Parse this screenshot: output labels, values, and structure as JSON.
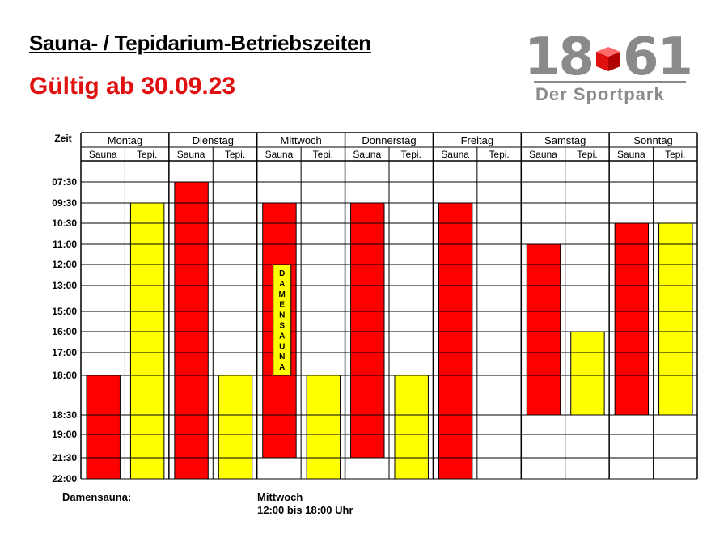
{
  "header": {
    "title": "Sauna- / Tepidarium-Betriebszeiten",
    "subtitle": "Gültig ab 30.09.23"
  },
  "logo": {
    "left_number": "18",
    "right_number": "61",
    "name": "Der Sportpark",
    "cube_color": "#e01010"
  },
  "colors": {
    "sauna": "#ff0000",
    "tepidarium": "#ffff00",
    "title_red": "#e01010",
    "logo_grey": "#8a8a8a"
  },
  "chart_data": {
    "type": "table",
    "time_header": "Zeit",
    "days": [
      "Montag",
      "Dienstag",
      "Mittwoch",
      "Donnerstag",
      "Freitag",
      "Samstag",
      "Sonntag"
    ],
    "sub_headers": [
      "Sauna",
      "Tepi."
    ],
    "time_labels": [
      "07:30",
      "09:30",
      "10:30",
      "11:00",
      "12:00",
      "13:00",
      "15:00",
      "16:00",
      "17:00",
      "18:00",
      "18:30",
      "19:00",
      "21:30",
      "22:00"
    ],
    "bars": [
      {
        "day": "Montag",
        "type": "Sauna",
        "from": "18:00",
        "to": "22:00"
      },
      {
        "day": "Montag",
        "type": "Tepi.",
        "from": "09:30",
        "to": "22:00"
      },
      {
        "day": "Dienstag",
        "type": "Sauna",
        "from": "07:30",
        "to": "22:00"
      },
      {
        "day": "Dienstag",
        "type": "Tepi.",
        "from": "18:00",
        "to": "22:00"
      },
      {
        "day": "Mittwoch",
        "type": "Sauna",
        "from": "09:30",
        "to": "21:30"
      },
      {
        "day": "Mittwoch",
        "type": "Tepi.",
        "from": "18:00",
        "to": "22:00"
      },
      {
        "day": "Donnerstag",
        "type": "Sauna",
        "from": "09:30",
        "to": "21:30"
      },
      {
        "day": "Donnerstag",
        "type": "Tepi.",
        "from": "18:00",
        "to": "22:00"
      },
      {
        "day": "Freitag",
        "type": "Sauna",
        "from": "09:30",
        "to": "22:00"
      },
      {
        "day": "Samstag",
        "type": "Sauna",
        "from": "11:00",
        "to": "18:30"
      },
      {
        "day": "Samstag",
        "type": "Tepi.",
        "from": "16:00",
        "to": "18:30"
      },
      {
        "day": "Sonntag",
        "type": "Sauna",
        "from": "10:30",
        "to": "18:30"
      },
      {
        "day": "Sonntag",
        "type": "Tepi.",
        "from": "10:30",
        "to": "18:30"
      }
    ],
    "damensauna_marker": {
      "day": "Mittwoch",
      "from": "12:00",
      "to": "18:00",
      "text": "DAMENSAUNA"
    }
  },
  "notes": {
    "label": "Damensauna:",
    "day": "Mittwoch",
    "time": "12:00 bis 18:00 Uhr"
  }
}
